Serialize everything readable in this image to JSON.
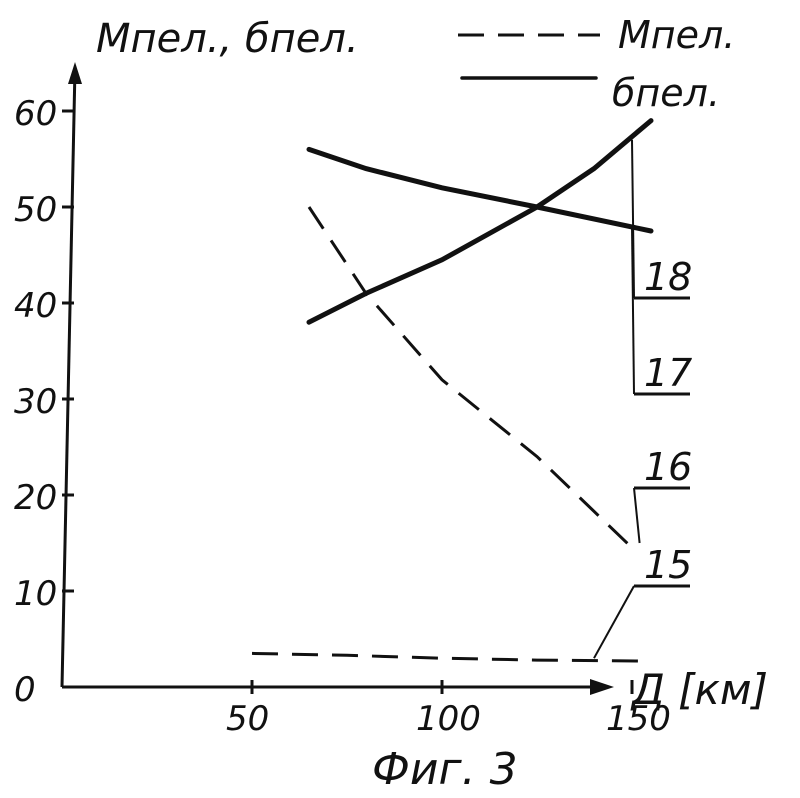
{
  "chart_data": {
    "type": "line",
    "ylabel": "Mпел., бпел.",
    "xlabel": "Д [км]",
    "caption": "Фиг. 3",
    "x_ticks": [
      "50",
      "100",
      "150"
    ],
    "x_tick_values": [
      50,
      100,
      150
    ],
    "y_ticks": [
      "0",
      "10",
      "20",
      "30",
      "40",
      "50",
      "60"
    ],
    "y_tick_values": [
      0,
      10,
      20,
      30,
      40,
      50,
      60
    ],
    "xlim": [
      0,
      170
    ],
    "ylim": [
      0,
      62
    ],
    "legend_position": "top-right",
    "legend": [
      {
        "label": "Mпел.",
        "style": "dashed"
      },
      {
        "label": "бпел.",
        "style": "solid"
      }
    ],
    "series": [
      {
        "ref": "15",
        "kind": "M",
        "style": "dashed",
        "x": [
          50,
          75,
          100,
          125,
          155
        ],
        "y": [
          3.5,
          3.3,
          3.0,
          2.8,
          2.7
        ]
      },
      {
        "ref": "16",
        "kind": "M",
        "style": "dashed",
        "x": [
          65,
          80,
          100,
          125,
          150
        ],
        "y": [
          50,
          41,
          32,
          24,
          14.5
        ]
      },
      {
        "ref": "17",
        "kind": "б",
        "style": "solid",
        "x": [
          65,
          80,
          100,
          125,
          155
        ],
        "y": [
          56,
          54,
          52,
          50,
          47.5
        ]
      },
      {
        "ref": "18",
        "kind": "б",
        "style": "solid",
        "x": [
          65,
          80,
          100,
          125,
          140,
          155
        ],
        "y": [
          38,
          41,
          44.5,
          50,
          54,
          59
        ]
      }
    ],
    "annotations": [
      {
        "text": "18",
        "x": 150,
        "y": 57
      },
      {
        "text": "17",
        "x": 150,
        "y": 48
      },
      {
        "text": "16",
        "x": 152,
        "y": 15
      },
      {
        "text": "15",
        "x": 140,
        "y": 3
      }
    ]
  }
}
